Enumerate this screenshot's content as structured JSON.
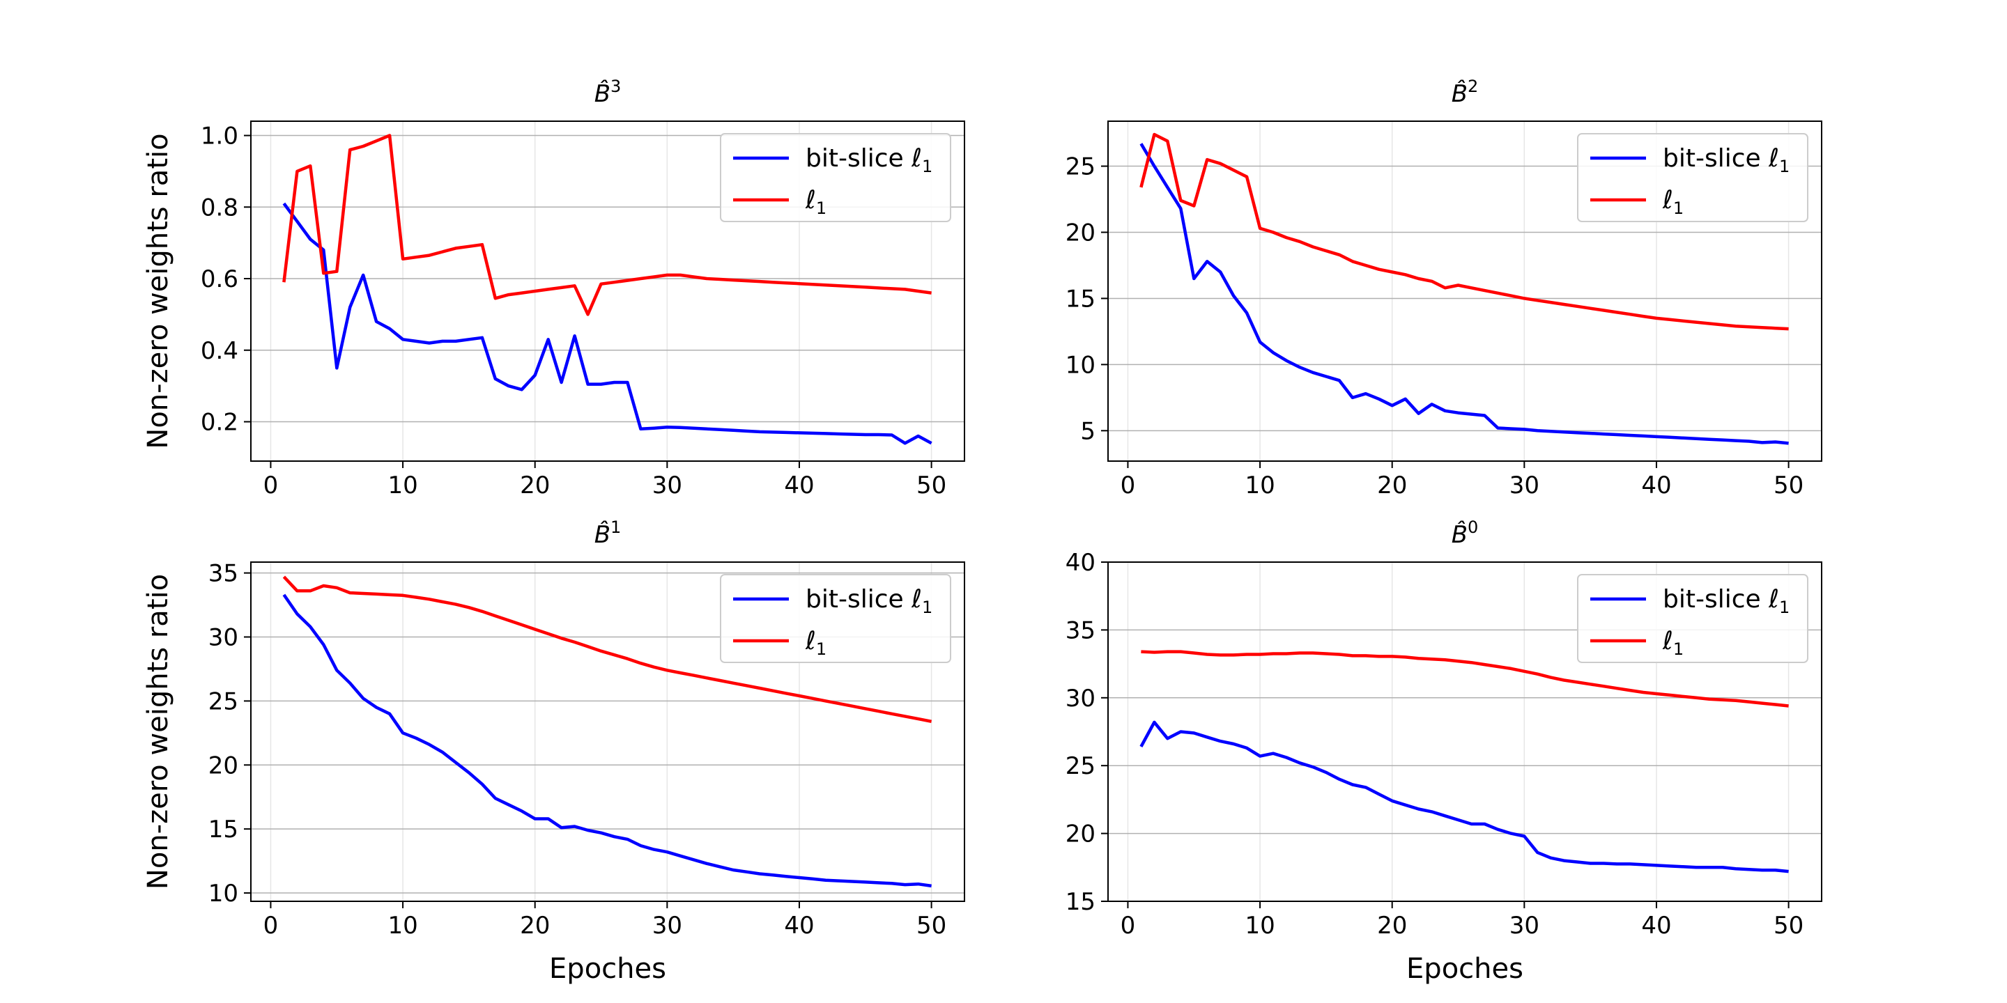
{
  "chart_data": [
    {
      "type": "line",
      "title_letter": "B̂",
      "title_superscript": "3",
      "xlabel": "",
      "ylabel": "Non-zero weights ratio",
      "xlim": [
        -1.5,
        52.5
      ],
      "ylim": [
        0.09,
        1.04
      ],
      "xticks": [
        0,
        10,
        20,
        30,
        40,
        50
      ],
      "yticks": [
        0.2,
        0.4,
        0.6,
        0.8,
        1.0
      ],
      "ytick_labels": [
        "0.2",
        "0.4",
        "0.6",
        "0.8",
        "1.0"
      ],
      "grid": true,
      "legend_position": "top-right",
      "series": [
        {
          "name": "bit-slice ℓ",
          "name_subscript": "1",
          "color": "#0000ff",
          "x": [
            1,
            2,
            3,
            4,
            5,
            6,
            7,
            8,
            9,
            10,
            11,
            12,
            13,
            14,
            15,
            16,
            17,
            18,
            19,
            20,
            21,
            22,
            23,
            24,
            25,
            26,
            27,
            28,
            29,
            30,
            31,
            32,
            33,
            34,
            35,
            36,
            37,
            38,
            39,
            40,
            41,
            42,
            43,
            44,
            45,
            46,
            47,
            48,
            49,
            50
          ],
          "values": [
            0.81,
            0.76,
            0.71,
            0.68,
            0.35,
            0.52,
            0.61,
            0.48,
            0.46,
            0.43,
            0.425,
            0.42,
            0.425,
            0.425,
            0.43,
            0.435,
            0.32,
            0.3,
            0.29,
            0.33,
            0.43,
            0.31,
            0.44,
            0.305,
            0.305,
            0.31,
            0.31,
            0.18,
            0.182,
            0.185,
            0.184,
            0.182,
            0.18,
            0.178,
            0.176,
            0.174,
            0.172,
            0.171,
            0.17,
            0.169,
            0.168,
            0.167,
            0.166,
            0.165,
            0.164,
            0.164,
            0.163,
            0.14,
            0.16,
            0.14
          ]
        },
        {
          "name": "ℓ",
          "name_subscript": "1",
          "color": "#ff0000",
          "x": [
            1,
            2,
            3,
            4,
            5,
            6,
            7,
            8,
            9,
            10,
            11,
            12,
            13,
            14,
            15,
            16,
            17,
            18,
            19,
            20,
            21,
            22,
            23,
            24,
            25,
            26,
            27,
            28,
            29,
            30,
            31,
            32,
            33,
            34,
            35,
            36,
            37,
            38,
            39,
            40,
            41,
            42,
            43,
            44,
            45,
            46,
            47,
            48,
            49,
            50
          ],
          "values": [
            0.59,
            0.9,
            0.915,
            0.615,
            0.62,
            0.96,
            0.97,
            0.985,
            1.0,
            0.655,
            0.66,
            0.665,
            0.675,
            0.685,
            0.69,
            0.695,
            0.545,
            0.555,
            0.56,
            0.565,
            0.57,
            0.575,
            0.58,
            0.5,
            0.585,
            0.59,
            0.595,
            0.6,
            0.605,
            0.61,
            0.61,
            0.605,
            0.6,
            0.598,
            0.596,
            0.594,
            0.592,
            0.59,
            0.588,
            0.586,
            0.584,
            0.582,
            0.58,
            0.578,
            0.576,
            0.574,
            0.572,
            0.57,
            0.565,
            0.56
          ]
        }
      ]
    },
    {
      "type": "line",
      "title_letter": "B̂",
      "title_superscript": "2",
      "xlabel": "",
      "ylabel": "",
      "xlim": [
        -1.5,
        52.5
      ],
      "ylim": [
        2.7,
        28.4
      ],
      "xticks": [
        0,
        10,
        20,
        30,
        40,
        50
      ],
      "yticks": [
        5,
        10,
        15,
        20,
        25
      ],
      "ytick_labels": [
        "5",
        "10",
        "15",
        "20",
        "25"
      ],
      "grid": true,
      "legend_position": "top-right",
      "series": [
        {
          "name": "bit-slice ℓ",
          "name_subscript": "1",
          "color": "#0000ff",
          "x": [
            1,
            2,
            3,
            4,
            5,
            6,
            7,
            8,
            9,
            10,
            11,
            12,
            13,
            14,
            15,
            16,
            17,
            18,
            19,
            20,
            21,
            22,
            23,
            24,
            25,
            26,
            27,
            28,
            29,
            30,
            31,
            32,
            33,
            34,
            35,
            36,
            37,
            38,
            39,
            40,
            41,
            42,
            43,
            44,
            45,
            46,
            47,
            48,
            49,
            50
          ],
          "values": [
            26.7,
            25.0,
            23.4,
            21.8,
            16.5,
            17.8,
            17.0,
            15.2,
            13.9,
            11.7,
            10.9,
            10.3,
            9.8,
            9.4,
            9.1,
            8.8,
            7.5,
            7.8,
            7.4,
            6.9,
            7.4,
            6.3,
            7.0,
            6.5,
            6.35,
            6.25,
            6.15,
            5.2,
            5.15,
            5.1,
            5.0,
            4.95,
            4.9,
            4.85,
            4.8,
            4.75,
            4.7,
            4.65,
            4.6,
            4.55,
            4.5,
            4.45,
            4.4,
            4.35,
            4.3,
            4.25,
            4.2,
            4.1,
            4.15,
            4.05
          ]
        },
        {
          "name": "ℓ",
          "name_subscript": "1",
          "color": "#ff0000",
          "x": [
            1,
            2,
            3,
            4,
            5,
            6,
            7,
            8,
            9,
            10,
            11,
            12,
            13,
            14,
            15,
            16,
            17,
            18,
            19,
            20,
            21,
            22,
            23,
            24,
            25,
            26,
            27,
            28,
            29,
            30,
            31,
            32,
            33,
            34,
            35,
            36,
            37,
            38,
            39,
            40,
            41,
            42,
            43,
            44,
            45,
            46,
            47,
            48,
            49,
            50
          ],
          "values": [
            23.4,
            27.4,
            26.9,
            22.4,
            22.0,
            25.5,
            25.2,
            24.7,
            24.2,
            20.3,
            20.0,
            19.6,
            19.3,
            18.9,
            18.6,
            18.3,
            17.8,
            17.5,
            17.2,
            17.0,
            16.8,
            16.5,
            16.3,
            15.8,
            16.0,
            15.8,
            15.6,
            15.4,
            15.2,
            15.0,
            14.85,
            14.7,
            14.55,
            14.4,
            14.25,
            14.1,
            13.95,
            13.8,
            13.65,
            13.5,
            13.4,
            13.3,
            13.2,
            13.1,
            13.0,
            12.9,
            12.85,
            12.8,
            12.75,
            12.7
          ]
        }
      ]
    },
    {
      "type": "line",
      "title_letter": "B̂",
      "title_superscript": "1",
      "xlabel": "Epoches",
      "ylabel": "Non-zero weights ratio",
      "xlim": [
        -1.5,
        52.5
      ],
      "ylim": [
        9.35,
        35.85
      ],
      "xticks": [
        0,
        10,
        20,
        30,
        40,
        50
      ],
      "yticks": [
        10,
        15,
        20,
        25,
        30,
        35
      ],
      "ytick_labels": [
        "10",
        "15",
        "20",
        "25",
        "30",
        "35"
      ],
      "grid": true,
      "legend_position": "top-right",
      "series": [
        {
          "name": "bit-slice ℓ",
          "name_subscript": "1",
          "color": "#0000ff",
          "x": [
            1,
            2,
            3,
            4,
            5,
            6,
            7,
            8,
            9,
            10,
            11,
            12,
            13,
            14,
            15,
            16,
            17,
            18,
            19,
            20,
            21,
            22,
            23,
            24,
            25,
            26,
            27,
            28,
            29,
            30,
            31,
            32,
            33,
            34,
            35,
            36,
            37,
            38,
            39,
            40,
            41,
            42,
            43,
            44,
            45,
            46,
            47,
            48,
            49,
            50
          ],
          "values": [
            33.3,
            31.8,
            30.8,
            29.4,
            27.4,
            26.4,
            25.2,
            24.5,
            24.0,
            22.5,
            22.1,
            21.6,
            21.0,
            20.2,
            19.4,
            18.5,
            17.4,
            16.9,
            16.4,
            15.8,
            15.8,
            15.1,
            15.2,
            14.9,
            14.7,
            14.4,
            14.2,
            13.7,
            13.4,
            13.2,
            12.9,
            12.6,
            12.3,
            12.05,
            11.8,
            11.65,
            11.5,
            11.4,
            11.3,
            11.2,
            11.1,
            11.0,
            10.95,
            10.9,
            10.85,
            10.8,
            10.75,
            10.65,
            10.7,
            10.55
          ]
        },
        {
          "name": "ℓ",
          "name_subscript": "1",
          "color": "#ff0000",
          "x": [
            1,
            2,
            3,
            4,
            5,
            6,
            7,
            8,
            9,
            10,
            11,
            12,
            13,
            14,
            15,
            16,
            17,
            18,
            19,
            20,
            21,
            22,
            23,
            24,
            25,
            26,
            27,
            28,
            29,
            30,
            31,
            32,
            33,
            34,
            35,
            36,
            37,
            38,
            39,
            40,
            41,
            42,
            43,
            44,
            45,
            46,
            47,
            48,
            49,
            50
          ],
          "values": [
            34.7,
            33.6,
            33.6,
            34.0,
            33.85,
            33.45,
            33.4,
            33.35,
            33.3,
            33.25,
            33.1,
            32.95,
            32.75,
            32.55,
            32.3,
            32.0,
            31.65,
            31.3,
            30.95,
            30.6,
            30.25,
            29.9,
            29.6,
            29.25,
            28.9,
            28.6,
            28.3,
            27.95,
            27.65,
            27.4,
            27.2,
            27.0,
            26.8,
            26.6,
            26.4,
            26.2,
            26.0,
            25.8,
            25.6,
            25.4,
            25.2,
            25.0,
            24.8,
            24.6,
            24.4,
            24.2,
            24.0,
            23.8,
            23.6,
            23.4
          ]
        }
      ]
    },
    {
      "type": "line",
      "title_letter": "B̂",
      "title_superscript": "0",
      "xlabel": "Epoches",
      "ylabel": "",
      "xlim": [
        -1.5,
        52.5
      ],
      "ylim": [
        15,
        40
      ],
      "xticks": [
        0,
        10,
        20,
        30,
        40,
        50
      ],
      "yticks": [
        15,
        20,
        25,
        30,
        35,
        40
      ],
      "ytick_labels": [
        "15",
        "20",
        "25",
        "30",
        "35",
        "40"
      ],
      "grid": true,
      "legend_position": "top-right",
      "series": [
        {
          "name": "bit-slice ℓ",
          "name_subscript": "1",
          "color": "#0000ff",
          "x": [
            1,
            2,
            3,
            4,
            5,
            6,
            7,
            8,
            9,
            10,
            11,
            12,
            13,
            14,
            15,
            16,
            17,
            18,
            19,
            20,
            21,
            22,
            23,
            24,
            25,
            26,
            27,
            28,
            29,
            30,
            31,
            32,
            33,
            34,
            35,
            36,
            37,
            38,
            39,
            40,
            41,
            42,
            43,
            44,
            45,
            46,
            47,
            48,
            49,
            50
          ],
          "values": [
            26.4,
            28.2,
            27.0,
            27.5,
            27.4,
            27.1,
            26.8,
            26.6,
            26.3,
            25.7,
            25.9,
            25.6,
            25.2,
            24.9,
            24.5,
            24.0,
            23.6,
            23.4,
            22.9,
            22.4,
            22.1,
            21.8,
            21.6,
            21.3,
            21.0,
            20.7,
            20.7,
            20.3,
            20.0,
            19.8,
            18.6,
            18.2,
            18.0,
            17.9,
            17.8,
            17.8,
            17.75,
            17.75,
            17.7,
            17.65,
            17.6,
            17.55,
            17.5,
            17.5,
            17.5,
            17.4,
            17.35,
            17.3,
            17.3,
            17.2
          ]
        },
        {
          "name": "ℓ",
          "name_subscript": "1",
          "color": "#ff0000",
          "x": [
            1,
            2,
            3,
            4,
            5,
            6,
            7,
            8,
            9,
            10,
            11,
            12,
            13,
            14,
            15,
            16,
            17,
            18,
            19,
            20,
            21,
            22,
            23,
            24,
            25,
            26,
            27,
            28,
            29,
            30,
            31,
            32,
            33,
            34,
            35,
            36,
            37,
            38,
            39,
            40,
            41,
            42,
            43,
            44,
            45,
            46,
            47,
            48,
            49,
            50
          ],
          "values": [
            33.4,
            33.35,
            33.4,
            33.4,
            33.3,
            33.2,
            33.15,
            33.15,
            33.2,
            33.2,
            33.25,
            33.25,
            33.3,
            33.3,
            33.25,
            33.2,
            33.1,
            33.1,
            33.05,
            33.05,
            33.0,
            32.9,
            32.85,
            32.8,
            32.7,
            32.6,
            32.45,
            32.3,
            32.15,
            31.95,
            31.75,
            31.5,
            31.3,
            31.15,
            31.0,
            30.85,
            30.7,
            30.55,
            30.4,
            30.3,
            30.2,
            30.1,
            30.0,
            29.9,
            29.85,
            29.8,
            29.7,
            29.6,
            29.5,
            29.4
          ]
        }
      ]
    }
  ]
}
